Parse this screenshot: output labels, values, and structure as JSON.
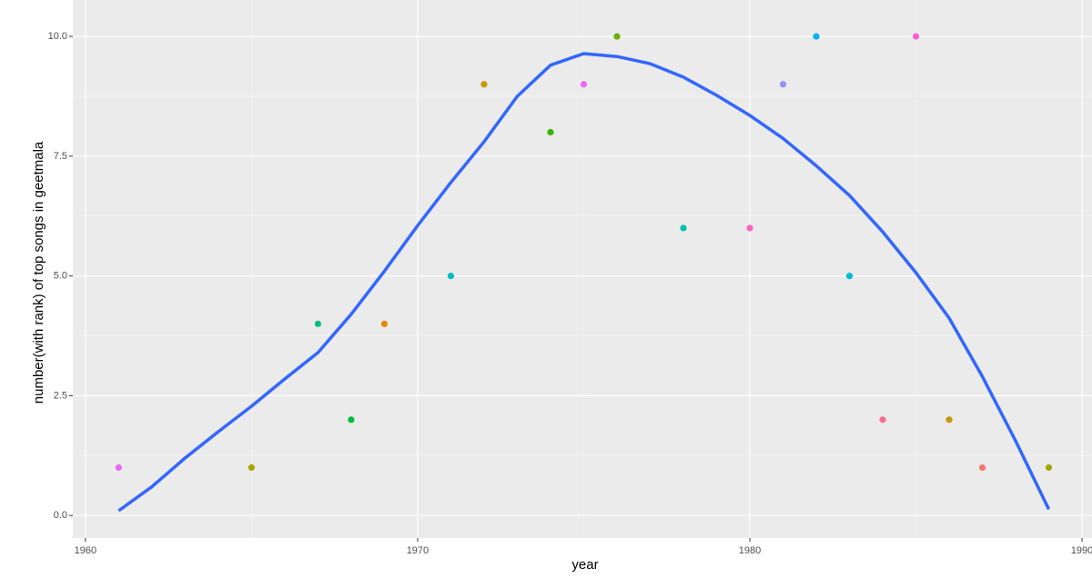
{
  "chart_data": {
    "type": "scatter",
    "x_label": "year",
    "y_label": "number(with rank) of top songs in geetmala",
    "x": [
      1961,
      1965,
      1967,
      1968,
      1969,
      1971,
      1972,
      1974,
      1975,
      1976,
      1978,
      1980,
      1981,
      1982,
      1983,
      1984,
      1985,
      1986,
      1987,
      1989
    ],
    "values": [
      1,
      1,
      4,
      2,
      4,
      5,
      9,
      8,
      9,
      10,
      6,
      6,
      9,
      10,
      5,
      2,
      10,
      2,
      1,
      1
    ],
    "point_colors": [
      "#E76BF3",
      "#A3A500",
      "#00BF7D",
      "#00BA38",
      "#E58700",
      "#00BFC4",
      "#C99800",
      "#39B600",
      "#E76BF3",
      "#6BB100",
      "#00C0AF",
      "#FF62BC",
      "#9590FF",
      "#00B0F6",
      "#00BCD8",
      "#FF6C91",
      "#FD61D1",
      "#C99800",
      "#F8766D",
      "#A3A500"
    ],
    "trend": {
      "color": "#3366FF",
      "x": [
        1961,
        1962,
        1963,
        1964,
        1965,
        1966,
        1967,
        1968,
        1969,
        1970,
        1971,
        1972,
        1973,
        1974,
        1975,
        1976,
        1977,
        1978,
        1979,
        1980,
        1981,
        1982,
        1983,
        1984,
        1985,
        1986,
        1987,
        1988,
        1989
      ],
      "values": [
        0.1,
        0.6,
        1.2,
        1.75,
        2.28,
        2.85,
        3.4,
        4.2,
        5.1,
        6.05,
        6.95,
        7.8,
        8.75,
        9.4,
        9.64,
        9.58,
        9.43,
        9.15,
        8.77,
        8.35,
        7.87,
        7.3,
        6.68,
        5.92,
        5.07,
        4.12,
        2.9,
        1.56,
        0.13
      ]
    },
    "xlim": [
      1959.62,
      1990.3
    ],
    "ylim": [
      -0.47,
      10.76
    ],
    "xticks": [
      1960,
      1970,
      1980,
      1990
    ],
    "yticks": [
      {
        "value": 0,
        "label": "0.0"
      },
      {
        "value": 2.5,
        "label": "2.5"
      },
      {
        "value": 5,
        "label": "5.0"
      },
      {
        "value": 7.5,
        "label": "7.5"
      },
      {
        "value": 10,
        "label": "10.0"
      }
    ],
    "grid": true
  }
}
